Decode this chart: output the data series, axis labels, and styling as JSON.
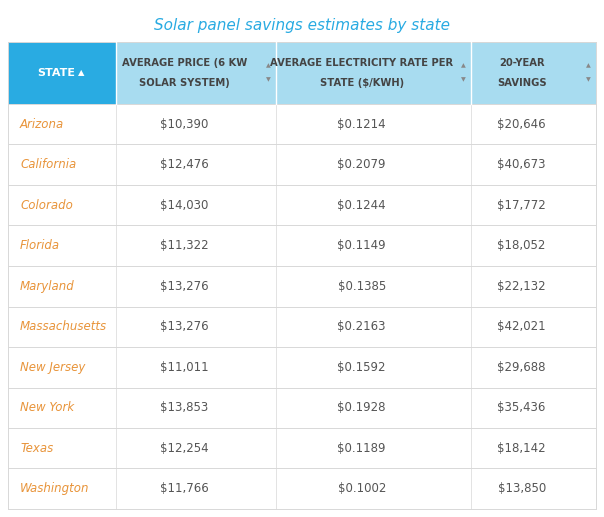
{
  "title": "Solar panel savings estimates by state",
  "title_color": "#29ABE2",
  "col_headers": [
    "STATE",
    "AVERAGE PRICE (6 KW\nSOLAR SYSTEM)",
    "AVERAGE ELECTRICITY RATE PER\nSTATE ($/KWH)",
    "20-YEAR\nSAVINGS"
  ],
  "rows": [
    [
      "Arizona",
      "$10,390",
      "$0.1214",
      "$20,646"
    ],
    [
      "California",
      "$12,476",
      "$0.2079",
      "$40,673"
    ],
    [
      "Colorado",
      "$14,030",
      "$0.1244",
      "$17,772"
    ],
    [
      "Florida",
      "$11,322",
      "$0.1149",
      "$18,052"
    ],
    [
      "Maryland",
      "$13,276",
      "$0.1385",
      "$22,132"
    ],
    [
      "Massachusetts",
      "$13,276",
      "$0.2163",
      "$42,021"
    ],
    [
      "New Jersey",
      "$11,011",
      "$0.1592",
      "$29,688"
    ],
    [
      "New York",
      "$13,853",
      "$0.1928",
      "$35,436"
    ],
    [
      "Texas",
      "$12,254",
      "$0.1189",
      "$18,142"
    ],
    [
      "Washington",
      "$11,766",
      "$0.1002",
      "$13,850"
    ]
  ],
  "header_bg_color": "#A8DCF0",
  "header_text_color": "#555555",
  "state_col_bg": "#29ABE2",
  "row_bg": "#ffffff",
  "state_cell_text_color": "#E8943A",
  "data_cell_text_color": "#555555",
  "divider_color": "#d8d8d8",
  "background_color": "#ffffff",
  "fig_width": 6.04,
  "fig_height": 5.17,
  "dpi": 100
}
